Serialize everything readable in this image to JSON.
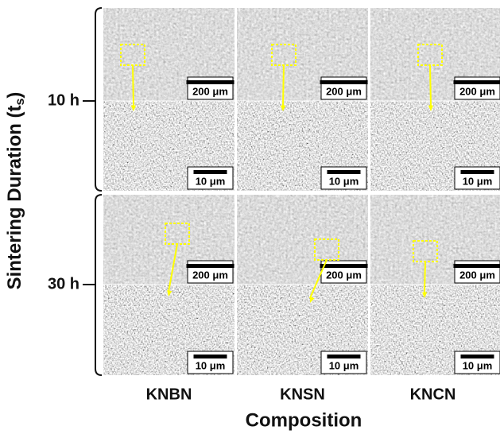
{
  "y_label": {
    "text": "Sintering Duration (t",
    "subscript": "s",
    "close": ")"
  },
  "x_label": "Composition",
  "rows": [
    "10 h",
    "30 h"
  ],
  "columns": [
    "KNBN",
    "KNSN",
    "KNCN"
  ],
  "panels": [
    {
      "low_scale": "200 μm",
      "high_scale": "10 μm"
    },
    {
      "low_scale": "200 μm",
      "high_scale": "10 μm"
    },
    {
      "low_scale": "200 μm",
      "high_scale": "10 μm"
    },
    {
      "low_scale": "200 μm",
      "high_scale": "10 μm"
    },
    {
      "low_scale": "200 μm",
      "high_scale": "10 μm"
    },
    {
      "low_scale": "200 μm",
      "high_scale": "10 μm"
    }
  ]
}
